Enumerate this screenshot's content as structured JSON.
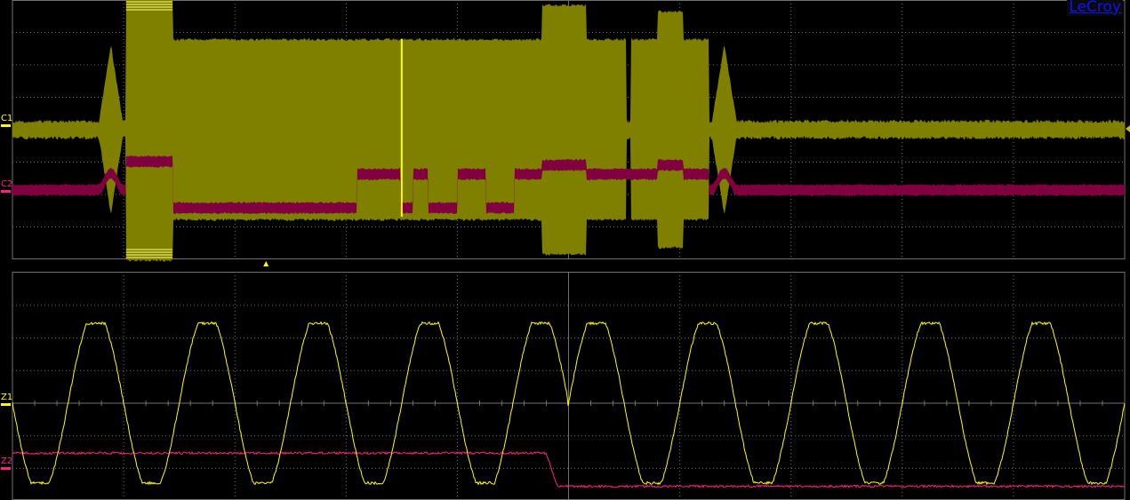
{
  "brand": "LeCroy",
  "colors": {
    "c1": "#808000",
    "c2": "#800040",
    "z1": "#ffff00",
    "z2": "#ff2080",
    "grid": "#707070",
    "brand": "#1010ff"
  },
  "chart_data": [
    {
      "type": "line",
      "panel": "top",
      "grid": true,
      "xlim": [
        0,
        10
      ],
      "ylim": [
        -4,
        4
      ],
      "cursor_x": 3.5,
      "trigger_marker_x": 2.28,
      "series": [
        {
          "name": "C1",
          "kind": "rf-envelope",
          "baseline_amplitude": 0.2,
          "segments": [
            {
              "x0": 0.77,
              "x1": 1.0,
              "amp": 2.6,
              "shape": "diamond"
            },
            {
              "x0": 1.02,
              "x1": 1.44,
              "amp": 4.0
            },
            {
              "x0": 1.44,
              "x1": 4.76,
              "amp": 2.74
            },
            {
              "x0": 4.76,
              "x1": 5.16,
              "amp": 3.8
            },
            {
              "x0": 5.16,
              "x1": 5.52,
              "amp": 2.74
            },
            {
              "x0": 5.56,
              "x1": 5.8,
              "amp": 2.74
            },
            {
              "x0": 5.8,
              "x1": 6.03,
              "amp": 3.6
            },
            {
              "x0": 6.03,
              "x1": 6.26,
              "amp": 2.74
            },
            {
              "x0": 6.28,
              "x1": 6.52,
              "amp": 2.6,
              "shape": "diamond"
            }
          ]
        },
        {
          "name": "C2",
          "kind": "levels",
          "baseline": 0,
          "segments": [
            {
              "x0": 0.77,
              "x1": 1.0,
              "level": 0.52,
              "shape": "bump"
            },
            {
              "x0": 1.02,
              "x1": 1.44,
              "level": 0.88
            },
            {
              "x0": 1.44,
              "x1": 3.1,
              "level": -0.55
            },
            {
              "x0": 3.1,
              "x1": 3.49,
              "level": 0.49
            },
            {
              "x0": 3.49,
              "x1": 3.6,
              "level": -0.55
            },
            {
              "x0": 3.6,
              "x1": 3.74,
              "level": 0.49
            },
            {
              "x0": 3.74,
              "x1": 4.0,
              "level": -0.55
            },
            {
              "x0": 4.0,
              "x1": 4.26,
              "level": 0.49
            },
            {
              "x0": 4.26,
              "x1": 4.51,
              "level": -0.55
            },
            {
              "x0": 4.51,
              "x1": 4.76,
              "level": 0.49
            },
            {
              "x0": 4.76,
              "x1": 5.16,
              "level": 0.77
            },
            {
              "x0": 5.16,
              "x1": 5.8,
              "level": 0.49
            },
            {
              "x0": 5.8,
              "x1": 6.03,
              "level": 0.77
            },
            {
              "x0": 6.03,
              "x1": 6.26,
              "level": 0.49
            },
            {
              "x0": 6.28,
              "x1": 6.52,
              "level": 0.52,
              "shape": "bump"
            }
          ]
        }
      ]
    },
    {
      "type": "line",
      "panel": "bottom",
      "grid": true,
      "xlim": [
        0,
        10
      ],
      "ylim": [
        -4,
        3
      ],
      "series": [
        {
          "name": "Z1",
          "kind": "sine",
          "amplitude": 2.45,
          "period": 1.0,
          "phase_before": 0.5,
          "phase_after": 0.0,
          "phase_jump_x": 4.99
        },
        {
          "name": "Z2",
          "kind": "step",
          "level_before": -1.53,
          "level_after": -2.55,
          "step_x": 4.8
        }
      ]
    }
  ]
}
